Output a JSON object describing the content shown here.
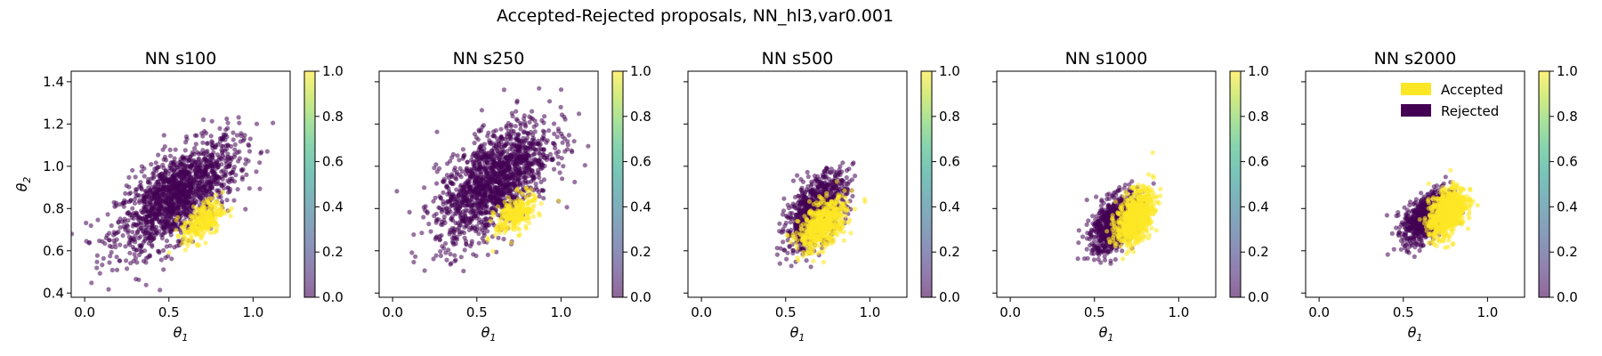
{
  "figure": {
    "title": "Accepted-Rejected proposals, NN_hl3,var0.001"
  },
  "colors": {
    "accepted": "#fde725",
    "rejected": "#440154",
    "colormap": [
      "#440154",
      "#482878",
      "#3e4989",
      "#31688e",
      "#26828e",
      "#1f9e89",
      "#35b779",
      "#6ece58",
      "#b5de2b",
      "#fde725"
    ]
  },
  "legend": {
    "entries": [
      {
        "label": "Accepted",
        "color": "#fde725"
      },
      {
        "label": "Rejected",
        "color": "#440154"
      }
    ],
    "panel": 4,
    "placement": "top-right"
  },
  "chart_data": [
    {
      "type": "scatter",
      "title": "NN s100",
      "xlabel": "θ1",
      "ylabel": "θ2",
      "xlim": [
        -0.08,
        1.22
      ],
      "ylim": [
        0.38,
        1.45
      ],
      "xticks": [
        "0.0",
        "0.5",
        "1.0"
      ],
      "yticks": [
        "0.4",
        "0.6",
        "0.8",
        "1.0",
        "1.2",
        "1.4"
      ],
      "colorbar": {
        "range": [
          0.0,
          1.0
        ],
        "ticks": [
          "0.0",
          "0.2",
          "0.4",
          "0.6",
          "0.8",
          "1.0"
        ]
      },
      "rejected": {
        "center": [
          0.55,
          0.86
        ],
        "sd": [
          0.18,
          0.13
        ],
        "corr": 0.65,
        "count": 1500
      },
      "accepted": {
        "center": [
          0.7,
          0.74
        ],
        "sd": [
          0.06,
          0.05
        ],
        "corr": 0.5,
        "count": 260
      }
    },
    {
      "type": "scatter",
      "title": "NN s250",
      "xlabel": "θ1",
      "ylabel": "",
      "xlim": [
        -0.08,
        1.22
      ],
      "ylim": [
        0.38,
        1.45
      ],
      "xticks": [
        "0.0",
        "0.5",
        "1.0"
      ],
      "yticks": [],
      "colorbar": {
        "range": [
          0.0,
          1.0
        ],
        "ticks": [
          "0.0",
          "0.2",
          "0.4",
          "0.6",
          "0.8",
          "1.0"
        ]
      },
      "rejected": {
        "center": [
          0.6,
          0.93
        ],
        "sd": [
          0.17,
          0.14
        ],
        "corr": 0.6,
        "count": 1500
      },
      "accepted": {
        "center": [
          0.73,
          0.77
        ],
        "sd": [
          0.06,
          0.05
        ],
        "corr": 0.5,
        "count": 240
      }
    },
    {
      "type": "scatter",
      "title": "NN s500",
      "xlabel": "θ1",
      "ylabel": "",
      "xlim": [
        -0.08,
        1.22
      ],
      "ylim": [
        0.38,
        1.45
      ],
      "xticks": [
        "0.0",
        "0.5",
        "1.0"
      ],
      "yticks": [],
      "colorbar": {
        "range": [
          0.0,
          1.0
        ],
        "ticks": [
          "0.0",
          "0.2",
          "0.4",
          "0.6",
          "0.8",
          "1.0"
        ]
      },
      "rejected": {
        "center": [
          0.68,
          0.79
        ],
        "sd": [
          0.09,
          0.09
        ],
        "corr": 0.55,
        "count": 900
      },
      "accepted": {
        "center": [
          0.72,
          0.72
        ],
        "sd": [
          0.07,
          0.06
        ],
        "corr": 0.5,
        "count": 550
      }
    },
    {
      "type": "scatter",
      "title": "NN s1000",
      "xlabel": "θ1",
      "ylabel": "",
      "xlim": [
        -0.08,
        1.22
      ],
      "ylim": [
        0.38,
        1.45
      ],
      "xticks": [
        "0.0",
        "0.5",
        "1.0"
      ],
      "yticks": [],
      "colorbar": {
        "range": [
          0.0,
          1.0
        ],
        "ticks": [
          "0.0",
          "0.2",
          "0.4",
          "0.6",
          "0.8",
          "1.0"
        ]
      },
      "rejected": {
        "center": [
          0.62,
          0.73
        ],
        "sd": [
          0.07,
          0.07
        ],
        "corr": 0.5,
        "count": 800
      },
      "accepted": {
        "center": [
          0.74,
          0.76
        ],
        "sd": [
          0.055,
          0.065
        ],
        "corr": 0.45,
        "count": 700
      }
    },
    {
      "type": "scatter",
      "title": "NN s2000",
      "xlabel": "θ1",
      "ylabel": "",
      "xlim": [
        -0.08,
        1.22
      ],
      "ylim": [
        0.38,
        1.45
      ],
      "xticks": [
        "0.0",
        "0.5",
        "1.0"
      ],
      "yticks": [],
      "colorbar": {
        "range": [
          0.0,
          1.0
        ],
        "ticks": [
          "0.0",
          "0.2",
          "0.4",
          "0.6",
          "0.8",
          "1.0"
        ]
      },
      "rejected": {
        "center": [
          0.64,
          0.76
        ],
        "sd": [
          0.07,
          0.06
        ],
        "corr": 0.5,
        "count": 800
      },
      "accepted": {
        "center": [
          0.76,
          0.78
        ],
        "sd": [
          0.055,
          0.06
        ],
        "corr": 0.45,
        "count": 700
      }
    }
  ]
}
